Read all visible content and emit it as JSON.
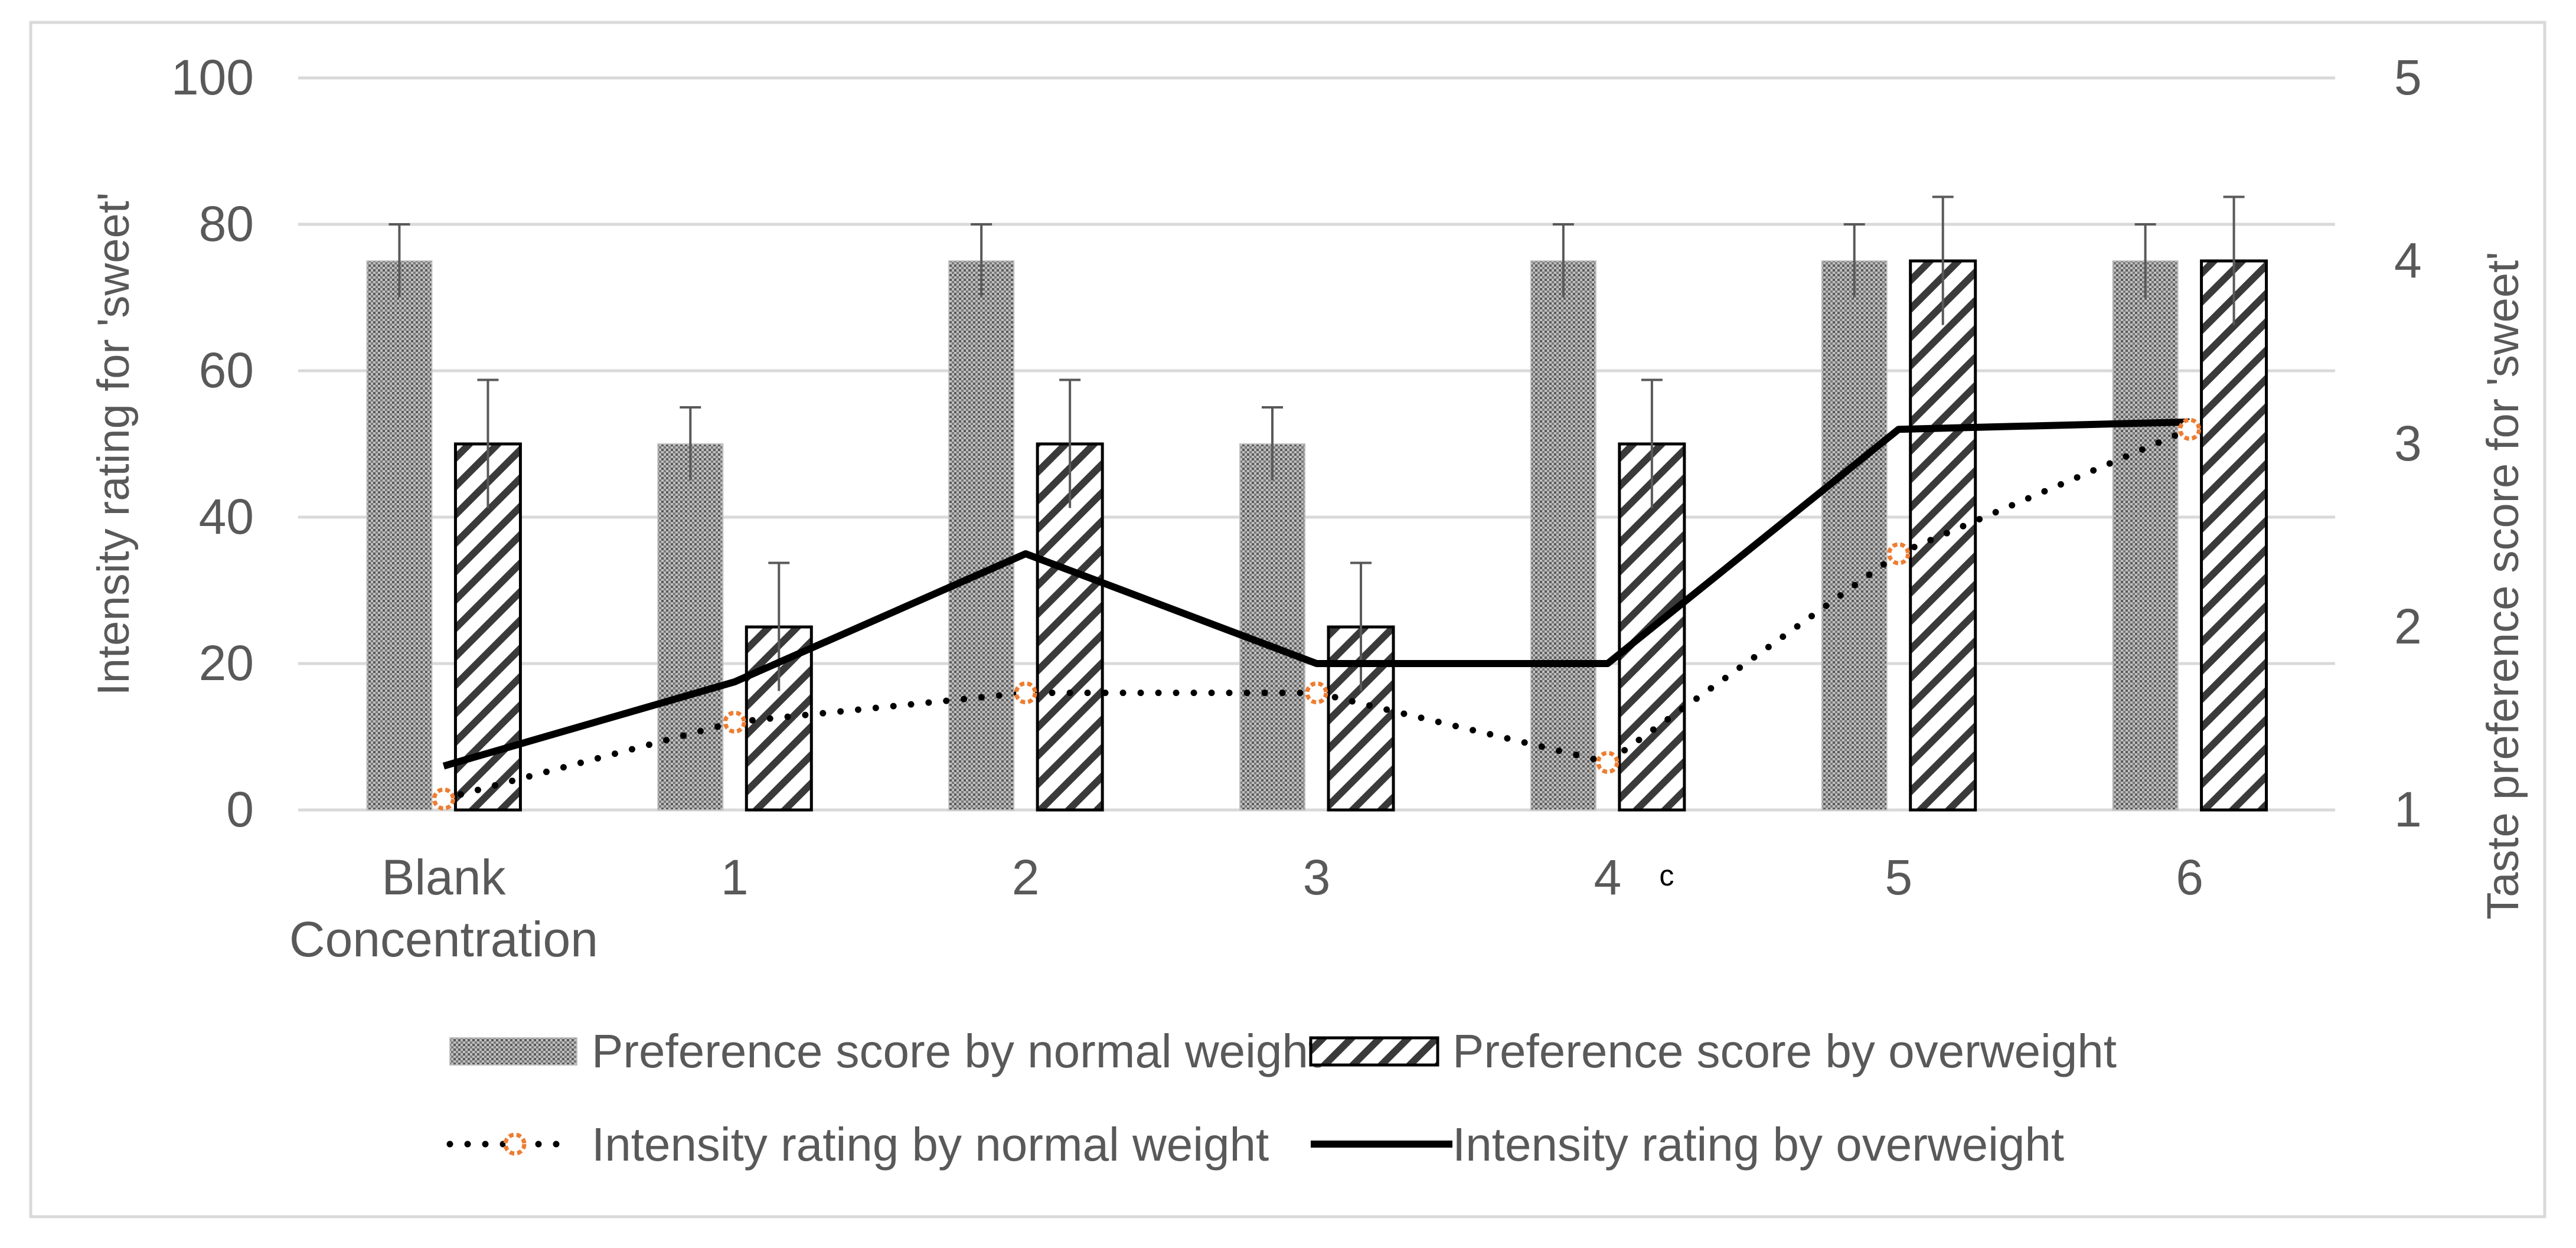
{
  "chart_data": {
    "type": "bar",
    "title": "",
    "categories": [
      "Blank\nConcentration",
      "1",
      "2",
      "3",
      "4",
      "5",
      "6"
    ],
    "xlabel": "",
    "ylabel_left": "Intensity rating for 'sweet'",
    "ylabel_right": "Taste preference score for 'sweet'",
    "ylim_left": [
      0,
      100
    ],
    "ylim_right": [
      1,
      5
    ],
    "yticks_left": [
      "0",
      "20",
      "40",
      "60",
      "80",
      "100"
    ],
    "yticks_right": [
      "1",
      "2",
      "3",
      "4",
      "5"
    ],
    "grid": true,
    "stray_label": "c",
    "bar_series": [
      {
        "name": "Preference score by normal weight",
        "axis": "right",
        "pattern": "dotted-fill",
        "values": [
          4,
          3,
          4,
          3,
          4,
          4,
          4
        ],
        "error": [
          0.2,
          0.2,
          0.2,
          0.2,
          0.2,
          0.2,
          0.2
        ]
      },
      {
        "name": "Preference score  by overweight",
        "axis": "right",
        "pattern": "diagonal-hatch",
        "values": [
          3,
          2,
          3,
          2,
          3,
          4,
          4
        ],
        "error": [
          0.35,
          0.35,
          0.35,
          0.35,
          0.35,
          0.35,
          0.35
        ]
      }
    ],
    "line_series": [
      {
        "name": "Intensity rating by normal weight",
        "axis": "left",
        "style": "dotted",
        "marker_color": "#ed7d31",
        "values": [
          1.5,
          12,
          16,
          16,
          6.5,
          35,
          52
        ]
      },
      {
        "name": "Intensity rating  by overweight",
        "axis": "left",
        "style": "solid",
        "values": [
          6,
          17.5,
          35,
          20,
          20,
          52,
          53
        ]
      }
    ],
    "legend_position": "bottom",
    "colors": {
      "axis_text": "#595959",
      "grid": "#d9d9d9",
      "bar_border": "#000000",
      "line": "#000000",
      "marker": "#ed7d31",
      "error_bar": "#595959"
    }
  }
}
